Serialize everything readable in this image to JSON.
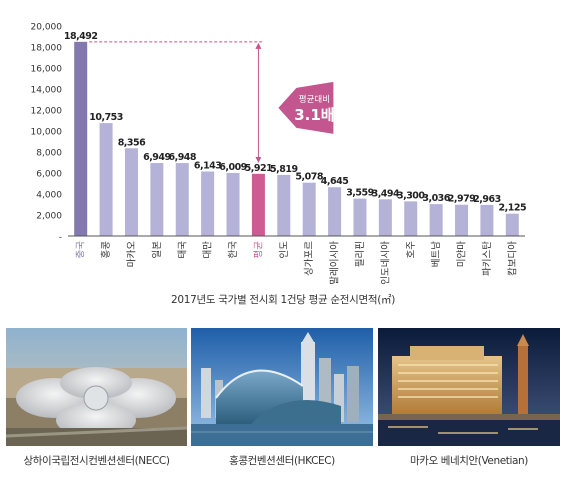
{
  "chart_data": {
    "type": "bar",
    "categories": [
      "중국",
      "홍콩",
      "마카오",
      "일본",
      "태국",
      "대만",
      "한국",
      "평균",
      "인도",
      "싱가포르",
      "말레이시아",
      "필리핀",
      "인도네시아",
      "호주",
      "베트남",
      "미얀마",
      "파키스탄",
      "캄보디아"
    ],
    "values": [
      18492,
      10753,
      8356,
      6949,
      6948,
      6143,
      6009,
      5921,
      5819,
      5078,
      4645,
      3559,
      3494,
      3300,
      3036,
      2979,
      2963,
      2125
    ],
    "value_labels": [
      "18,492",
      "10,753",
      "8,356",
      "6,949",
      "6,948",
      "6,143",
      "6,009",
      "5,921",
      "5,819",
      "5,078",
      "4,645",
      "3,559",
      "3,494",
      "3,300",
      "3,036",
      "2,979",
      "2,963",
      "2,125"
    ],
    "ylim": [
      0,
      20000
    ],
    "ytick_labels": [
      "20,000",
      "18,000",
      "16,000",
      "14,000",
      "12,000",
      "10,000",
      "8,000",
      "6,000",
      "4,000",
      "2,000",
      "-"
    ],
    "ytick_values": [
      20000,
      18000,
      16000,
      14000,
      12000,
      10000,
      8000,
      6000,
      4000,
      2000,
      0
    ],
    "grid": false,
    "caption": "2017년도 국가별 전시회 1건당 평균 순전시면적(㎡)",
    "callout": {
      "line1": "평균대비",
      "line2": "3.1배"
    },
    "highlight": {
      "max_index": 0,
      "average_index": 7
    },
    "colors": {
      "default_bar": "#b4b3d7",
      "max_bar": "#8479ae",
      "average_bar": "#cf5b93",
      "callout": "#c3568f",
      "axis": "#555555",
      "category_default": "#333333"
    }
  },
  "photos": [
    {
      "label": "상하이국립전시컨벤션센터(NECC)"
    },
    {
      "label": "홍콩컨벤션센터(HKCEC)"
    },
    {
      "label": "마카오 베네치안(Venetian)"
    }
  ]
}
